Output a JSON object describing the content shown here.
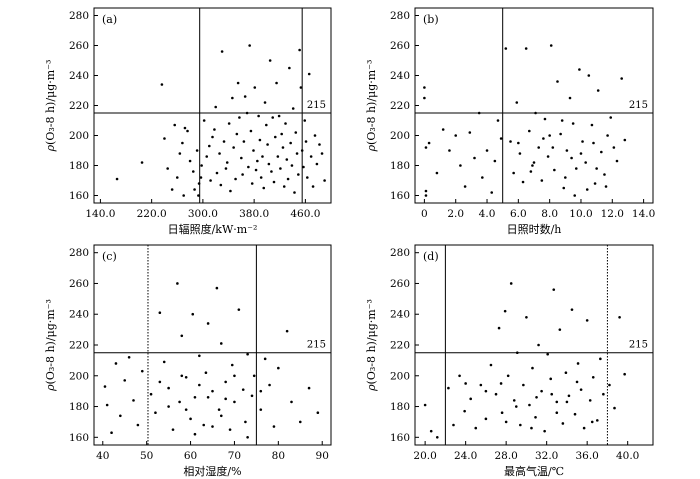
{
  "chart_data": [
    {
      "type": "scatter",
      "panel": "(a)",
      "xlabel": "日辐照度/kW·m⁻²",
      "ylabel_prefix": "ρ",
      "ylabel_rest": "(O₃-8 h)/μg·m⁻³",
      "xlim": [
        130,
        500
      ],
      "ylim": [
        155,
        285
      ],
      "xticks": [
        140,
        220,
        300,
        380,
        460
      ],
      "xtick_labels": [
        "140.0",
        "220.0",
        "300.0",
        "380.0",
        "460.0"
      ],
      "yticks": [
        160,
        180,
        200,
        220,
        240,
        260,
        280
      ],
      "ytick_labels": [
        "160",
        "180",
        "200",
        "220",
        "240",
        "260",
        "280"
      ],
      "hline": {
        "y": 215,
        "label": "215"
      },
      "vlines": [
        {
          "x": 295,
          "style": "solid"
        },
        {
          "x": 455,
          "style": "solid"
        }
      ],
      "grid": false,
      "points": [
        [
          166,
          171
        ],
        [
          205,
          182
        ],
        [
          236,
          234
        ],
        [
          240,
          198
        ],
        [
          245,
          178
        ],
        [
          252,
          164
        ],
        [
          256,
          207
        ],
        [
          260,
          172
        ],
        [
          264,
          188
        ],
        [
          268,
          195
        ],
        [
          272,
          205
        ],
        [
          270,
          160
        ],
        [
          276,
          203
        ],
        [
          280,
          183
        ],
        [
          285,
          176
        ],
        [
          287,
          164
        ],
        [
          291,
          190
        ],
        [
          293,
          160
        ],
        [
          294,
          168
        ],
        [
          297,
          172
        ],
        [
          298,
          180
        ],
        [
          302,
          210
        ],
        [
          306,
          186
        ],
        [
          310,
          193
        ],
        [
          312,
          170
        ],
        [
          315,
          199
        ],
        [
          318,
          204
        ],
        [
          320,
          219
        ],
        [
          322,
          175
        ],
        [
          326,
          188
        ],
        [
          328,
          167
        ],
        [
          330,
          256
        ],
        [
          333,
          196
        ],
        [
          336,
          178
        ],
        [
          338,
          182
        ],
        [
          341,
          208
        ],
        [
          343,
          163
        ],
        [
          346,
          225
        ],
        [
          348,
          192
        ],
        [
          351,
          171
        ],
        [
          353,
          201
        ],
        [
          355,
          235
        ],
        [
          357,
          212
        ],
        [
          360,
          185
        ],
        [
          362,
          174
        ],
        [
          364,
          196
        ],
        [
          366,
          226
        ],
        [
          369,
          215
        ],
        [
          371,
          179
        ],
        [
          373,
          260
        ],
        [
          375,
          203
        ],
        [
          377,
          168
        ],
        [
          379,
          190
        ],
        [
          381,
          232
        ],
        [
          383,
          177
        ],
        [
          385,
          183
        ],
        [
          387,
          213
        ],
        [
          389,
          197
        ],
        [
          391,
          172
        ],
        [
          393,
          186
        ],
        [
          395,
          165
        ],
        [
          397,
          222
        ],
        [
          399,
          207
        ],
        [
          401,
          194
        ],
        [
          403,
          181
        ],
        [
          405,
          250
        ],
        [
          407,
          176
        ],
        [
          409,
          212
        ],
        [
          411,
          169
        ],
        [
          413,
          199
        ],
        [
          415,
          235
        ],
        [
          417,
          186
        ],
        [
          419,
          213
        ],
        [
          421,
          178
        ],
        [
          423,
          201
        ],
        [
          425,
          192
        ],
        [
          427,
          166
        ],
        [
          429,
          208
        ],
        [
          431,
          184
        ],
        [
          433,
          171
        ],
        [
          435,
          245
        ],
        [
          437,
          195
        ],
        [
          439,
          180
        ],
        [
          441,
          218
        ],
        [
          443,
          162
        ],
        [
          445,
          202
        ],
        [
          447,
          188
        ],
        [
          449,
          174
        ],
        [
          451,
          257
        ],
        [
          453,
          232
        ],
        [
          455,
          190
        ],
        [
          457,
          179
        ],
        [
          459,
          210
        ],
        [
          461,
          196
        ],
        [
          463,
          172
        ],
        [
          466,
          241
        ],
        [
          469,
          186
        ],
        [
          472,
          166
        ],
        [
          475,
          200
        ],
        [
          478,
          181
        ],
        [
          482,
          194
        ],
        [
          486,
          188
        ],
        [
          490,
          170
        ]
      ]
    },
    {
      "type": "scatter",
      "panel": "(b)",
      "xlabel": "日照时数/h",
      "ylabel_prefix": "ρ",
      "ylabel_rest": "(O₃-8 h)/μg·m⁻³",
      "xlim": [
        -0.6,
        14.6
      ],
      "ylim": [
        155,
        285
      ],
      "xticks": [
        0,
        2,
        4,
        6,
        8,
        10,
        12,
        14
      ],
      "xtick_labels": [
        "0",
        "2.0",
        "4.0",
        "6.0",
        "8.0",
        "10.0",
        "12.0",
        "14.0"
      ],
      "yticks": [
        160,
        180,
        200,
        220,
        240,
        260,
        280
      ],
      "ytick_labels": [
        "160",
        "180",
        "200",
        "220",
        "240",
        "260",
        "280"
      ],
      "hline": {
        "y": 215,
        "label": "215"
      },
      "vlines": [
        {
          "x": 5.0,
          "style": "solid"
        }
      ],
      "grid": false,
      "points": [
        [
          0,
          232
        ],
        [
          0,
          225
        ],
        [
          0.1,
          163
        ],
        [
          0.1,
          160
        ],
        [
          0.1,
          192
        ],
        [
          0.3,
          195
        ],
        [
          0.8,
          175
        ],
        [
          1.2,
          204
        ],
        [
          1.6,
          190
        ],
        [
          2.0,
          200
        ],
        [
          2.3,
          180
        ],
        [
          2.6,
          166
        ],
        [
          2.9,
          202
        ],
        [
          3.2,
          185
        ],
        [
          3.5,
          215
        ],
        [
          3.7,
          172
        ],
        [
          4.0,
          190
        ],
        [
          4.3,
          162
        ],
        [
          4.5,
          183
        ],
        [
          4.7,
          210
        ],
        [
          4.9,
          198
        ],
        [
          5.2,
          258
        ],
        [
          5.5,
          196
        ],
        [
          5.7,
          175
        ],
        [
          5.9,
          222
        ],
        [
          6.1,
          188
        ],
        [
          6.3,
          169
        ],
        [
          6.5,
          258
        ],
        [
          6.7,
          203
        ],
        [
          6.9,
          180
        ],
        [
          7.1,
          215
        ],
        [
          7.3,
          192
        ],
        [
          7.5,
          170
        ],
        [
          7.7,
          211
        ],
        [
          7.9,
          186
        ],
        [
          8.1,
          260
        ],
        [
          8.3,
          177
        ],
        [
          8.5,
          236
        ],
        [
          8.7,
          201
        ],
        [
          8.9,
          165
        ],
        [
          9.1,
          190
        ],
        [
          9.3,
          225
        ],
        [
          9.5,
          208
        ],
        [
          9.7,
          178
        ],
        [
          9.9,
          244
        ],
        [
          10.1,
          196
        ],
        [
          10.3,
          182
        ],
        [
          10.5,
          240
        ],
        [
          10.7,
          207
        ],
        [
          10.9,
          168
        ],
        [
          11.1,
          230
        ],
        [
          11.3,
          189
        ],
        [
          11.5,
          174
        ],
        [
          11.7,
          200
        ],
        [
          11.9,
          212
        ],
        [
          12.1,
          192
        ],
        [
          12.3,
          183
        ],
        [
          12.6,
          238
        ],
        [
          12.8,
          197
        ],
        [
          8.0,
          200
        ],
        [
          9.0,
          172
        ],
        [
          10.0,
          188
        ],
        [
          11.0,
          178
        ],
        [
          7.0,
          182
        ],
        [
          6.0,
          195
        ],
        [
          8.8,
          210
        ],
        [
          9.6,
          160
        ],
        [
          10.4,
          164
        ],
        [
          11.6,
          166
        ],
        [
          10.8,
          195
        ],
        [
          9.4,
          185
        ],
        [
          8.2,
          192
        ],
        [
          7.6,
          198
        ],
        [
          6.8,
          176
        ]
      ]
    },
    {
      "type": "scatter",
      "panel": "(c)",
      "xlabel": "相对湿度/%",
      "ylabel_prefix": "ρ",
      "ylabel_rest": "(O₃-8 h)/μg·m⁻³",
      "xlim": [
        38,
        92
      ],
      "ylim": [
        155,
        285
      ],
      "xticks": [
        40,
        50,
        60,
        70,
        80,
        90
      ],
      "xtick_labels": [
        "40",
        "50",
        "60",
        "70",
        "80",
        "90"
      ],
      "yticks": [
        160,
        180,
        200,
        220,
        240,
        260,
        280
      ],
      "ytick_labels": [
        "160",
        "180",
        "200",
        "220",
        "240",
        "260",
        "280"
      ],
      "hline": {
        "y": 215,
        "label": "215"
      },
      "vlines": [
        {
          "x": 50.3,
          "style": "dotted"
        },
        {
          "x": 75.0,
          "style": "solid"
        }
      ],
      "grid": false,
      "points": [
        [
          40.5,
          193
        ],
        [
          41,
          181
        ],
        [
          42,
          163
        ],
        [
          43,
          208
        ],
        [
          44,
          174
        ],
        [
          45,
          197
        ],
        [
          46,
          212
        ],
        [
          47,
          184
        ],
        [
          48,
          168
        ],
        [
          49,
          203
        ],
        [
          51,
          188
        ],
        [
          52,
          176
        ],
        [
          53,
          241
        ],
        [
          54,
          209
        ],
        [
          55,
          192
        ],
        [
          56,
          165
        ],
        [
          57,
          260
        ],
        [
          57.5,
          183
        ],
        [
          58,
          226
        ],
        [
          59,
          199
        ],
        [
          60,
          172
        ],
        [
          60.5,
          240
        ],
        [
          61,
          186
        ],
        [
          62,
          213
        ],
        [
          63,
          168
        ],
        [
          63.5,
          202
        ],
        [
          64,
          234
        ],
        [
          65,
          190
        ],
        [
          66,
          257
        ],
        [
          66.5,
          178
        ],
        [
          67,
          221
        ],
        [
          68,
          196
        ],
        [
          69,
          165
        ],
        [
          69.5,
          207
        ],
        [
          70,
          183
        ],
        [
          71,
          243
        ],
        [
          72,
          191
        ],
        [
          72.5,
          170
        ],
        [
          73,
          214
        ],
        [
          74,
          187
        ],
        [
          74.5,
          200
        ],
        [
          76,
          178
        ],
        [
          77,
          211
        ],
        [
          78,
          194
        ],
        [
          79,
          167
        ],
        [
          80,
          205
        ],
        [
          82,
          229
        ],
        [
          83,
          183
        ],
        [
          85,
          170
        ],
        [
          87,
          192
        ],
        [
          89,
          176
        ],
        [
          55,
          180
        ],
        [
          58,
          200
        ],
        [
          61,
          162
        ],
        [
          64,
          186
        ],
        [
          67,
          174
        ],
        [
          70,
          200
        ],
        [
          73,
          160
        ],
        [
          76,
          190
        ],
        [
          53,
          196
        ],
        [
          59,
          178
        ],
        [
          65,
          167
        ],
        [
          68,
          185
        ],
        [
          62,
          194
        ]
      ]
    },
    {
      "type": "scatter",
      "panel": "(d)",
      "xlabel": "最高气温/℃",
      "ylabel_prefix": "ρ",
      "ylabel_rest": "(O₃-8 h)/μg·m⁻³",
      "xlim": [
        19.0,
        42.5
      ],
      "ylim": [
        155,
        285
      ],
      "xticks": [
        20,
        24,
        28,
        32,
        36,
        40
      ],
      "xtick_labels": [
        "20.0",
        "24.0",
        "28.0",
        "32.0",
        "36.0",
        "40.0"
      ],
      "yticks": [
        160,
        180,
        200,
        220,
        240,
        260,
        280
      ],
      "ytick_labels": [
        "160",
        "180",
        "200",
        "220",
        "240",
        "260",
        "280"
      ],
      "hline": {
        "y": 215,
        "label": "215"
      },
      "vlines": [
        {
          "x": 22.0,
          "style": "solid"
        },
        {
          "x": 38.0,
          "style": "dotted"
        }
      ],
      "grid": false,
      "points": [
        [
          20,
          181
        ],
        [
          20.6,
          164
        ],
        [
          21.2,
          160
        ],
        [
          22.3,
          192
        ],
        [
          22.8,
          168
        ],
        [
          23.4,
          200
        ],
        [
          23.9,
          177
        ],
        [
          24.5,
          185
        ],
        [
          25,
          166
        ],
        [
          25.5,
          194
        ],
        [
          26,
          172
        ],
        [
          26.5,
          207
        ],
        [
          27,
          188
        ],
        [
          27.3,
          231
        ],
        [
          27.6,
          176
        ],
        [
          27.9,
          242
        ],
        [
          28.2,
          200
        ],
        [
          28.5,
          260
        ],
        [
          28.8,
          184
        ],
        [
          29.1,
          215
        ],
        [
          29.4,
          168
        ],
        [
          29.7,
          194
        ],
        [
          30,
          238
        ],
        [
          30.3,
          181
        ],
        [
          30.6,
          205
        ],
        [
          30.9,
          173
        ],
        [
          31.2,
          220
        ],
        [
          31.5,
          190
        ],
        [
          31.8,
          164
        ],
        [
          32.1,
          214
        ],
        [
          32.4,
          198
        ],
        [
          32.7,
          256
        ],
        [
          33,
          183
        ],
        [
          33.3,
          230
        ],
        [
          33.6,
          169
        ],
        [
          33.9,
          202
        ],
        [
          34.2,
          187
        ],
        [
          34.5,
          243
        ],
        [
          34.8,
          175
        ],
        [
          35.1,
          208
        ],
        [
          35.4,
          191
        ],
        [
          35.7,
          166
        ],
        [
          36,
          236
        ],
        [
          36.3,
          184
        ],
        [
          36.6,
          199
        ],
        [
          37,
          171
        ],
        [
          37.3,
          211
        ],
        [
          37.6,
          188
        ],
        [
          38.2,
          194
        ],
        [
          38.7,
          179
        ],
        [
          39.2,
          238
        ],
        [
          39.7,
          201
        ],
        [
          27.5,
          195
        ],
        [
          29,
          180
        ],
        [
          31,
          186
        ],
        [
          33,
          176
        ],
        [
          35,
          196
        ],
        [
          30.5,
          166
        ],
        [
          32.5,
          188
        ],
        [
          28,
          170
        ],
        [
          26,
          190
        ],
        [
          34,
          183
        ],
        [
          36.5,
          170
        ],
        [
          24,
          195
        ]
      ]
    }
  ]
}
